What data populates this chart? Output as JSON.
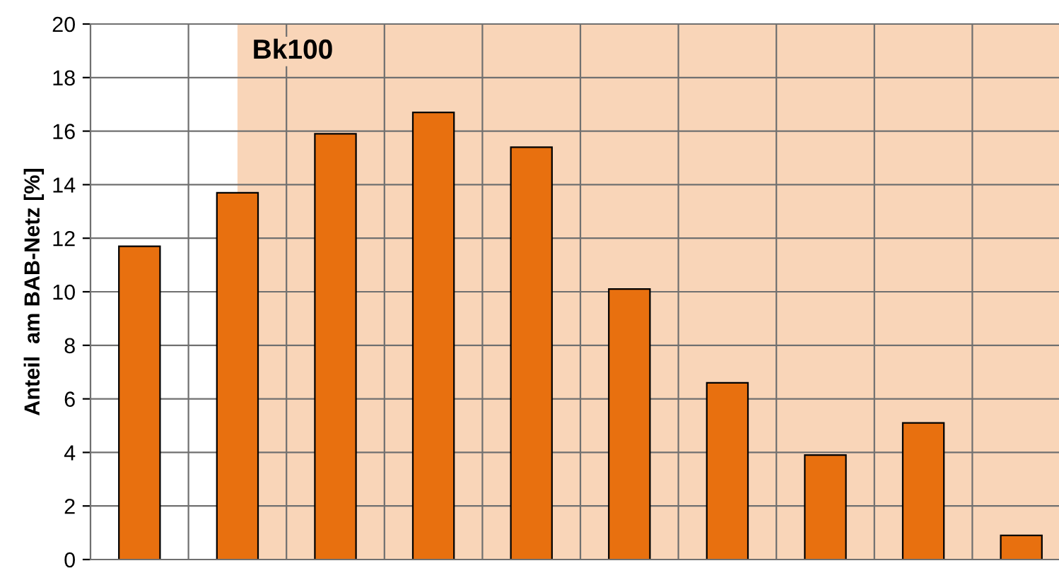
{
  "chart_data": {
    "type": "bar",
    "ylabel": "Anteil  am BAB-Netz [%]",
    "categories": [
      null,
      null,
      null,
      null,
      null,
      null,
      null,
      null,
      null,
      null
    ],
    "values": [
      11.7,
      13.7,
      15.9,
      16.7,
      15.4,
      10.1,
      6.6,
      3.9,
      5.1,
      0.9
    ],
    "color": "#e8700f",
    "ylim": [
      0,
      20
    ],
    "yticks": [
      0,
      2,
      4,
      6,
      8,
      10,
      12,
      14,
      16,
      18,
      20
    ],
    "annotations": [
      "Bk100"
    ],
    "grid": true,
    "tick_labels": "y"
  }
}
